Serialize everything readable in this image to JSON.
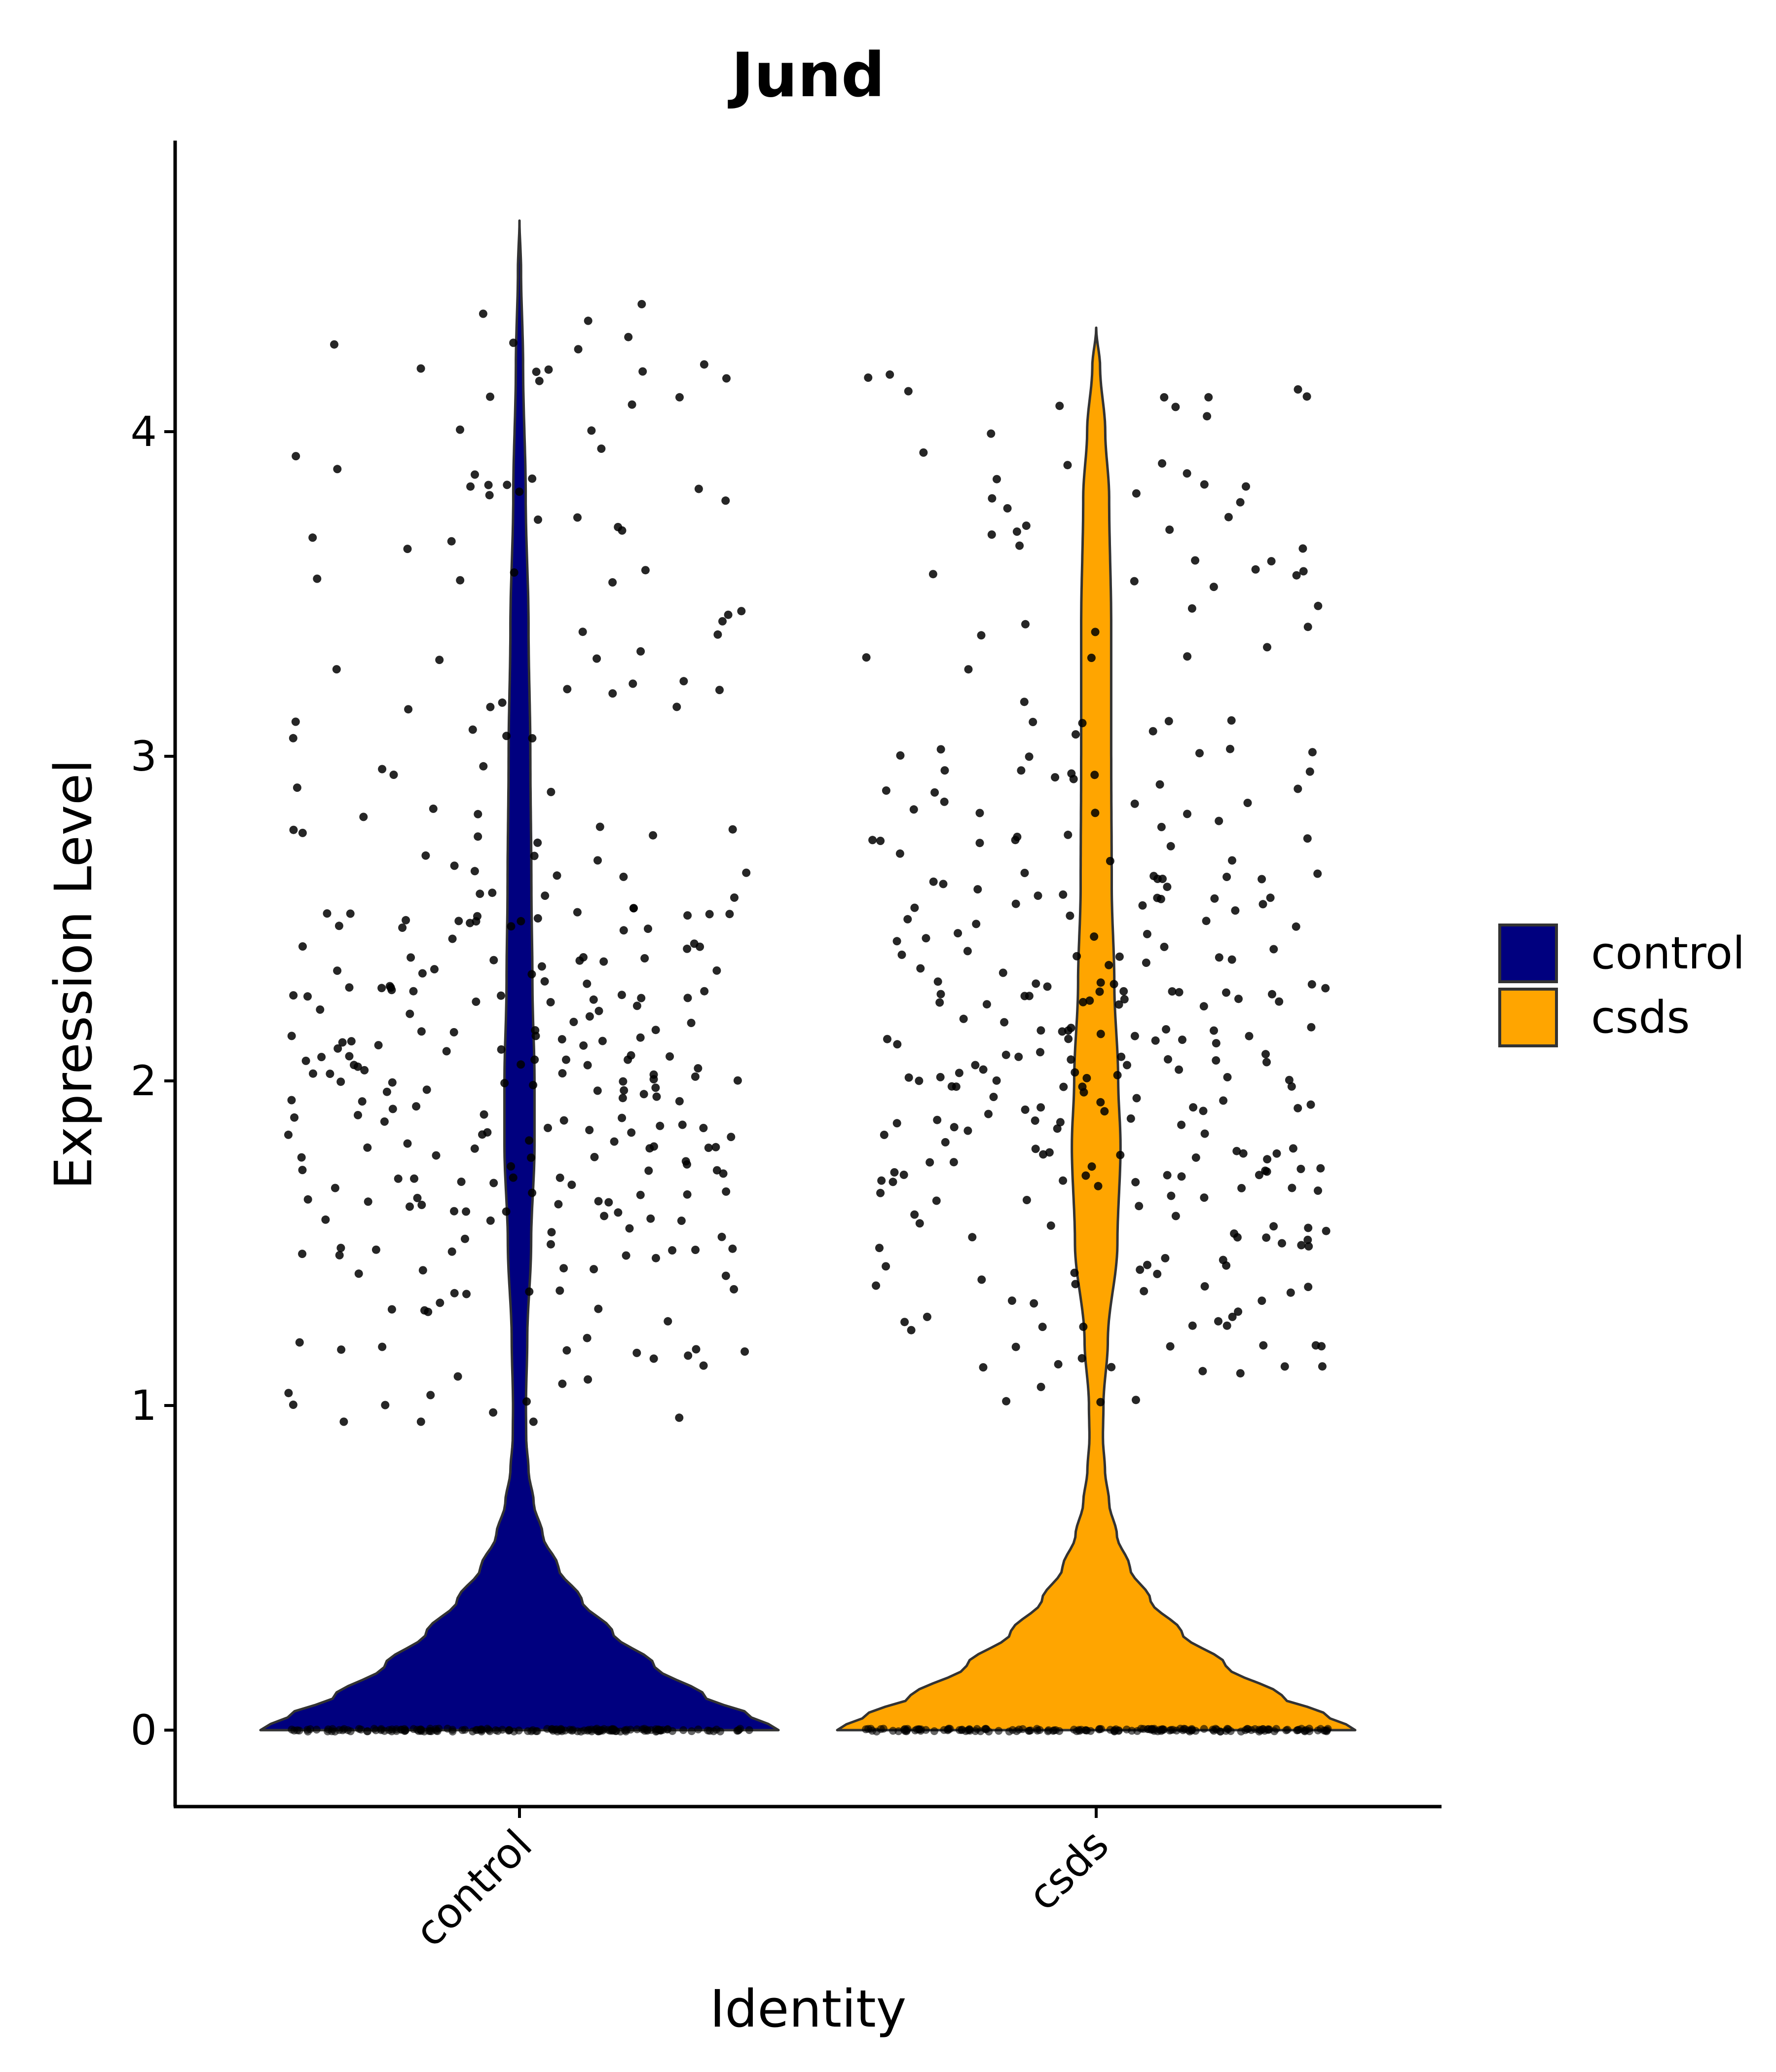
{
  "chart_data": {
    "type": "violin",
    "title": "Jund",
    "xlabel": "Identity",
    "ylabel": "Expression Level",
    "categories": [
      "control",
      "csds"
    ],
    "yticks": [
      0,
      1,
      2,
      3,
      4
    ],
    "ylim": [
      -0.23,
      4.8
    ],
    "grid": false,
    "legend_position": "right",
    "points_at_zero_many": true,
    "series": [
      {
        "name": "control",
        "color": "#00007F",
        "max": 4.65,
        "profile": [
          [
            0.0,
            1.0
          ],
          [
            0.05,
            0.88
          ],
          [
            0.1,
            0.72
          ],
          [
            0.2,
            0.52
          ],
          [
            0.3,
            0.36
          ],
          [
            0.4,
            0.24
          ],
          [
            0.5,
            0.15
          ],
          [
            0.6,
            0.09
          ],
          [
            0.7,
            0.055
          ],
          [
            0.8,
            0.035
          ],
          [
            0.9,
            0.026
          ],
          [
            1.0,
            0.025
          ],
          [
            1.2,
            0.03
          ],
          [
            1.5,
            0.045
          ],
          [
            1.8,
            0.058
          ],
          [
            2.0,
            0.058
          ],
          [
            2.3,
            0.05
          ],
          [
            2.6,
            0.046
          ],
          [
            3.0,
            0.042
          ],
          [
            3.4,
            0.035
          ],
          [
            3.8,
            0.024
          ],
          [
            4.2,
            0.014
          ],
          [
            4.5,
            0.006
          ],
          [
            4.65,
            0.0
          ]
        ]
      },
      {
        "name": "csds",
        "color": "#FFA500",
        "max": 4.32,
        "profile": [
          [
            0.0,
            1.0
          ],
          [
            0.05,
            0.88
          ],
          [
            0.1,
            0.72
          ],
          [
            0.2,
            0.5
          ],
          [
            0.3,
            0.33
          ],
          [
            0.4,
            0.21
          ],
          [
            0.5,
            0.13
          ],
          [
            0.6,
            0.08
          ],
          [
            0.7,
            0.05
          ],
          [
            0.8,
            0.034
          ],
          [
            0.9,
            0.026
          ],
          [
            1.0,
            0.028
          ],
          [
            1.2,
            0.045
          ],
          [
            1.5,
            0.082
          ],
          [
            1.8,
            0.094
          ],
          [
            2.0,
            0.085
          ],
          [
            2.3,
            0.07
          ],
          [
            2.6,
            0.06
          ],
          [
            3.0,
            0.058
          ],
          [
            3.4,
            0.058
          ],
          [
            3.8,
            0.05
          ],
          [
            4.0,
            0.035
          ],
          [
            4.2,
            0.015
          ],
          [
            4.32,
            0.0
          ]
        ]
      }
    ]
  }
}
